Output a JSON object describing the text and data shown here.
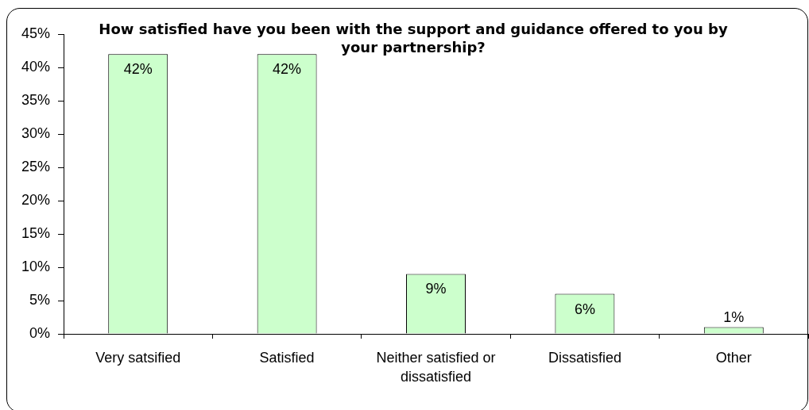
{
  "chart_data": {
    "type": "bar",
    "title": "How satisfied have you been with the support and guidance offered to you by your partnership?",
    "categories": [
      "Very satsified",
      "Satisfied",
      "Neither satisfied or dissatisfied",
      "Dissatisfied",
      "Other"
    ],
    "values": [
      42,
      42,
      9,
      6,
      1
    ],
    "color": "#ccffcc",
    "value_labels": [
      "42%",
      "42%",
      "9%",
      "6%",
      "1%"
    ],
    "ylim": [
      0,
      45
    ],
    "yticks": [
      {
        "value": 0,
        "label": "0%"
      },
      {
        "value": 5,
        "label": "5%"
      },
      {
        "value": 10,
        "label": "10%"
      },
      {
        "value": 15,
        "label": "15%"
      },
      {
        "value": 20,
        "label": "20%"
      },
      {
        "value": 25,
        "label": "25%"
      },
      {
        "value": 30,
        "label": "30%"
      },
      {
        "value": 35,
        "label": "35%"
      },
      {
        "value": 40,
        "label": "40%"
      },
      {
        "value": 45,
        "label": "45%"
      }
    ]
  }
}
